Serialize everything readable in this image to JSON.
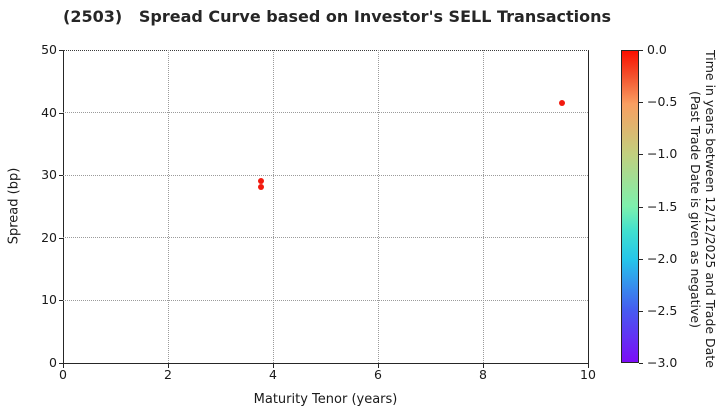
{
  "chart_data": {
    "type": "scatter",
    "title": "(2503)   Spread Curve based on Investor's SELL Transactions",
    "xlabel": "Maturity Tenor (years)",
    "ylabel": "Spread (bp)",
    "xlim": [
      0,
      10
    ],
    "ylim": [
      0,
      50
    ],
    "xticks": [
      0,
      2,
      4,
      6,
      8,
      10
    ],
    "xtick_labels": [
      "0",
      "2",
      "4",
      "6",
      "8",
      "10"
    ],
    "yticks": [
      0,
      10,
      20,
      30,
      40,
      50
    ],
    "ytick_labels": [
      "0",
      "10",
      "20",
      "30",
      "40",
      "50"
    ],
    "grid": true,
    "legend": false,
    "point_color": "#f21a0e",
    "points": [
      {
        "x": 3.78,
        "y": 29.0,
        "color_value": 0.0
      },
      {
        "x": 3.77,
        "y": 28.1,
        "color_value": 0.0
      },
      {
        "x": 9.5,
        "y": 41.6,
        "color_value": 0.0
      }
    ],
    "colorbar": {
      "label_line1": "Time in years between 12/12/2025 and Trade Date",
      "label_line2": "(Past Trade Date is given as negative)",
      "vmax": 0.0,
      "vmin": -3.0,
      "ticks": [
        "0.0",
        "−0.5",
        "−1.0",
        "−1.5",
        "−2.0",
        "−2.5",
        "−3.0"
      ],
      "gradient_stops": [
        {
          "pos": 0,
          "color": "#fb0f00"
        },
        {
          "pos": 8,
          "color": "#f4512c"
        },
        {
          "pos": 17,
          "color": "#f99e61"
        },
        {
          "pos": 33,
          "color": "#c2cf7e"
        },
        {
          "pos": 50,
          "color": "#7df0ad"
        },
        {
          "pos": 58,
          "color": "#40e0cf"
        },
        {
          "pos": 67,
          "color": "#25c6ea"
        },
        {
          "pos": 83,
          "color": "#455df0"
        },
        {
          "pos": 100,
          "color": "#7c0cf7"
        }
      ]
    }
  }
}
